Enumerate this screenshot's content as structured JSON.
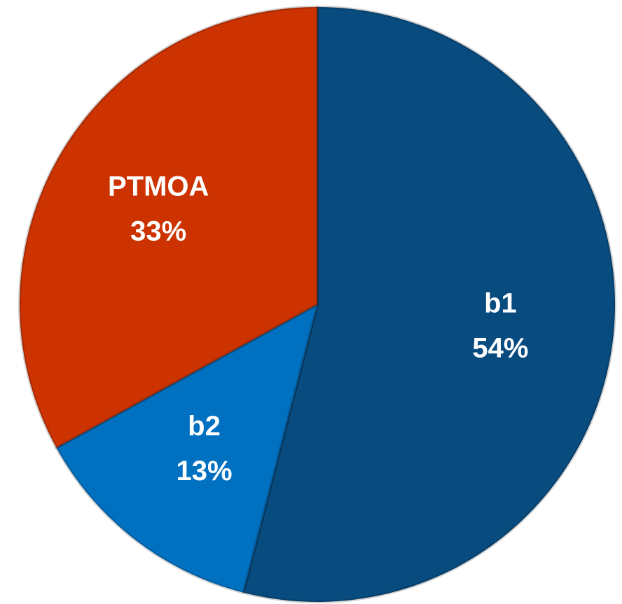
{
  "chart_data": {
    "type": "pie",
    "categories": [
      "b1",
      "b2",
      "PTMOA"
    ],
    "values": [
      54,
      13,
      33
    ],
    "value_labels": [
      "54%",
      "13%",
      "33%"
    ],
    "colors": [
      "#084b7f",
      "#0070c0",
      "#cc3300"
    ]
  }
}
